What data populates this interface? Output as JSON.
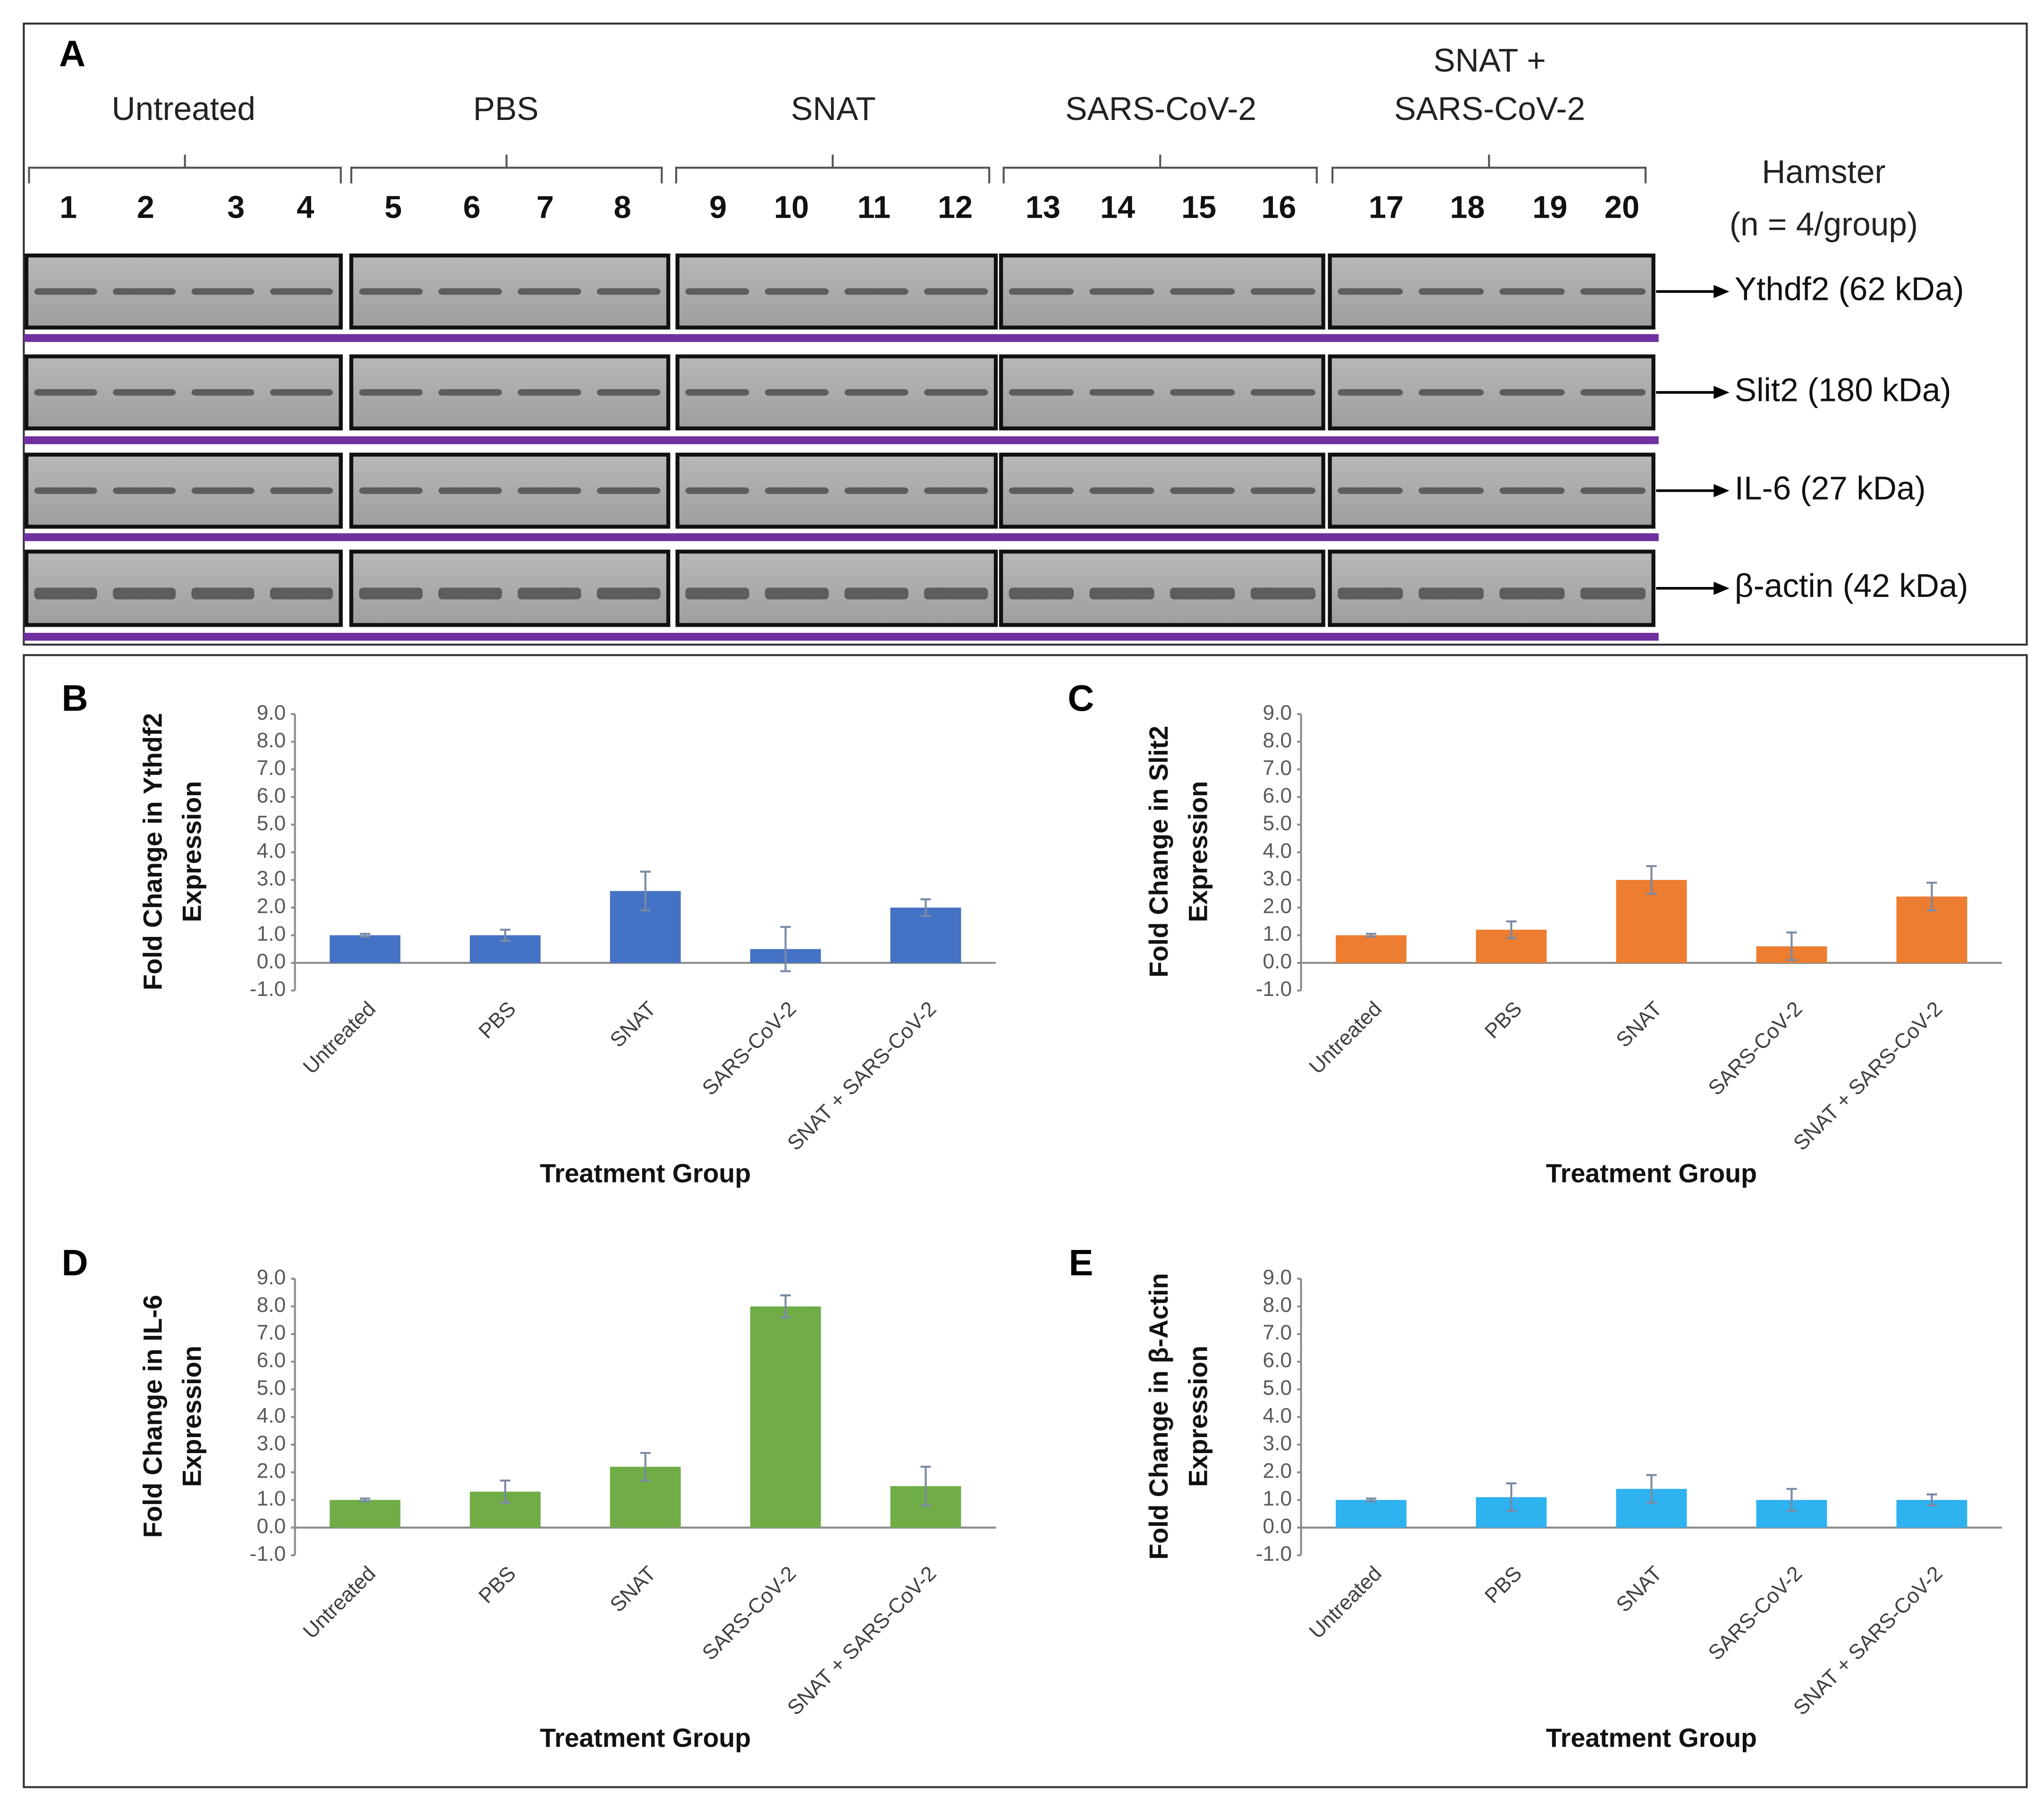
{
  "blot": {
    "panel": "A",
    "groups": [
      {
        "label": [
          "Untreated"
        ],
        "lanes": [
          1,
          2,
          3,
          4
        ]
      },
      {
        "label": [
          "PBS"
        ],
        "lanes": [
          5,
          6,
          7,
          8
        ]
      },
      {
        "label": [
          "SNAT"
        ],
        "lanes": [
          9,
          10,
          11,
          12
        ]
      },
      {
        "label": [
          "SARS-CoV-2"
        ],
        "lanes": [
          13,
          14,
          15,
          16
        ]
      },
      {
        "label": [
          "SNAT +",
          "SARS-CoV-2"
        ],
        "lanes": [
          17,
          18,
          19,
          20
        ]
      }
    ],
    "subject": [
      "Hamster",
      "(n = 4/group)"
    ],
    "proteins": [
      "Ythdf2 (62 kDa)",
      "Slit2 (180 kDa)",
      "IL-6 (27 kDa)",
      "β-actin (42 kDa)"
    ]
  },
  "chart_data": [
    {
      "type": "bar",
      "panel": "B",
      "ylabel": [
        "Fold Change in Ythdf2",
        "Expression"
      ],
      "xlabel": "Treatment Group",
      "categories": [
        "Untreated",
        "PBS",
        "SNAT",
        "SARS-CoV-2",
        "SNAT + SARS-CoV-2"
      ],
      "values": [
        1.0,
        1.0,
        2.6,
        0.5,
        2.0
      ],
      "errors": [
        0.05,
        0.2,
        0.7,
        0.8,
        0.3
      ],
      "color": "#4472c4",
      "ylim": [
        -1,
        9
      ],
      "yticks": [
        {
          "value": -1,
          "label": "-1.0"
        },
        {
          "value": 0,
          "label": "0.0"
        },
        {
          "value": 1,
          "label": "1.0"
        },
        {
          "value": 2,
          "label": "2.0"
        },
        {
          "value": 3,
          "label": "3.0"
        },
        {
          "value": 4,
          "label": "4.0"
        },
        {
          "value": 5,
          "label": "5.0"
        },
        {
          "value": 6,
          "label": "6.0"
        },
        {
          "value": 7,
          "label": "7.0"
        },
        {
          "value": 8,
          "label": "8.0"
        },
        {
          "value": 9,
          "label": "9.0"
        }
      ]
    },
    {
      "type": "bar",
      "panel": "C",
      "ylabel": [
        "Fold Change in Slit2",
        "Expression"
      ],
      "xlabel": "Treatment Group",
      "categories": [
        "Untreated",
        "PBS",
        "SNAT",
        "SARS-CoV-2",
        "SNAT + SARS-CoV-2"
      ],
      "values": [
        1.0,
        1.2,
        3.0,
        0.6,
        2.4
      ],
      "errors": [
        0.05,
        0.3,
        0.5,
        0.5,
        0.5
      ],
      "color": "#ed7d31",
      "ylim": [
        -1,
        9
      ],
      "yticks": [
        {
          "value": -1,
          "label": "-1.0"
        },
        {
          "value": 0,
          "label": "0.0"
        },
        {
          "value": 1,
          "label": "1.0"
        },
        {
          "value": 2,
          "label": "2.0"
        },
        {
          "value": 3,
          "label": "3.0"
        },
        {
          "value": 4,
          "label": "4.0"
        },
        {
          "value": 5,
          "label": "5.0"
        },
        {
          "value": 6,
          "label": "6.0"
        },
        {
          "value": 7,
          "label": "7.0"
        },
        {
          "value": 8,
          "label": "8.0"
        },
        {
          "value": 9,
          "label": "9.0"
        }
      ]
    },
    {
      "type": "bar",
      "panel": "D",
      "ylabel": [
        "Fold Change in IL-6",
        "Expression"
      ],
      "xlabel": "Treatment Group",
      "categories": [
        "Untreated",
        "PBS",
        "SNAT",
        "SARS-CoV-2",
        "SNAT + SARS-CoV-2"
      ],
      "values": [
        1.0,
        1.3,
        2.2,
        8.0,
        1.5
      ],
      "errors": [
        0.05,
        0.4,
        0.5,
        0.4,
        0.7
      ],
      "color": "#70ad47",
      "ylim": [
        -1,
        9
      ],
      "yticks": [
        {
          "value": -1,
          "label": "-1.0"
        },
        {
          "value": 0,
          "label": "0.0"
        },
        {
          "value": 1,
          "label": "1.0"
        },
        {
          "value": 2,
          "label": "2.0"
        },
        {
          "value": 3,
          "label": "3.0"
        },
        {
          "value": 4,
          "label": "4.0"
        },
        {
          "value": 5,
          "label": "5.0"
        },
        {
          "value": 6,
          "label": "6.0"
        },
        {
          "value": 7,
          "label": "7.0"
        },
        {
          "value": 8,
          "label": "8.0"
        },
        {
          "value": 9,
          "label": "9.0"
        }
      ]
    },
    {
      "type": "bar",
      "panel": "E",
      "ylabel": [
        "Fold Change in β-Actin",
        "Expression"
      ],
      "xlabel": "Treatment Group",
      "categories": [
        "Untreated",
        "PBS",
        "SNAT",
        "SARS-CoV-2",
        "SNAT + SARS-CoV-2"
      ],
      "values": [
        1.0,
        1.1,
        1.4,
        1.0,
        1.0
      ],
      "errors": [
        0.05,
        0.5,
        0.5,
        0.4,
        0.2
      ],
      "color": "#2eb2f0",
      "ylim": [
        -1,
        9
      ],
      "yticks": [
        {
          "value": -1,
          "label": "-1.0"
        },
        {
          "value": 0,
          "label": "0.0"
        },
        {
          "value": 1,
          "label": "1.0"
        },
        {
          "value": 2,
          "label": "2.0"
        },
        {
          "value": 3,
          "label": "3.0"
        },
        {
          "value": 4,
          "label": "4.0"
        },
        {
          "value": 5,
          "label": "5.0"
        },
        {
          "value": 6,
          "label": "6.0"
        },
        {
          "value": 7,
          "label": "7.0"
        },
        {
          "value": 8,
          "label": "8.0"
        },
        {
          "value": 9,
          "label": "9.0"
        }
      ]
    }
  ]
}
